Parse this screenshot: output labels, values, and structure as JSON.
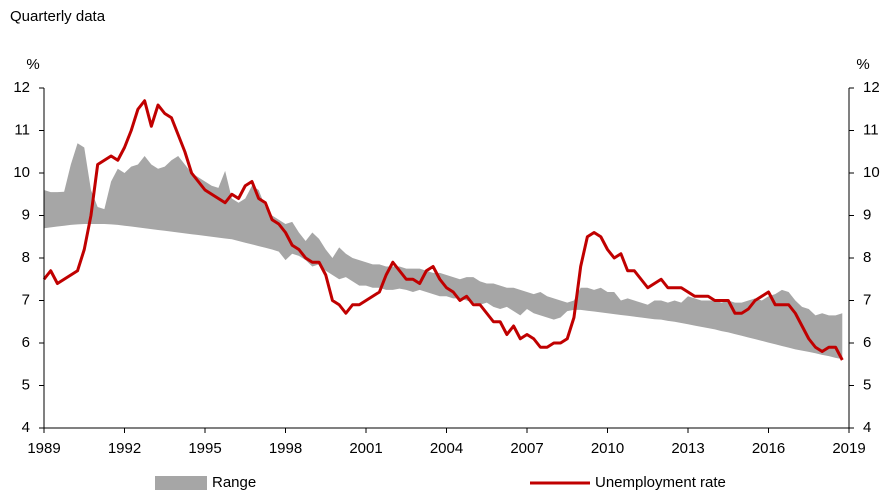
{
  "chart_data": {
    "type": "line",
    "subtitle": "Quarterly data",
    "y_label": "%",
    "y2_label": "%",
    "x": [
      1989,
      1989.25,
      1989.5,
      1989.75,
      1990,
      1990.25,
      1990.5,
      1990.75,
      1991,
      1991.25,
      1991.5,
      1991.75,
      1992,
      1992.25,
      1992.5,
      1992.75,
      1993,
      1993.25,
      1993.5,
      1993.75,
      1994,
      1994.25,
      1994.5,
      1994.75,
      1995,
      1995.25,
      1995.5,
      1995.75,
      1996,
      1996.25,
      1996.5,
      1996.75,
      1997,
      1997.25,
      1997.5,
      1997.75,
      1998,
      1998.25,
      1998.5,
      1998.75,
      1999,
      1999.25,
      1999.5,
      1999.75,
      2000,
      2000.25,
      2000.5,
      2000.75,
      2001,
      2001.25,
      2001.5,
      2001.75,
      2002,
      2002.25,
      2002.5,
      2002.75,
      2003,
      2003.25,
      2003.5,
      2003.75,
      2004,
      2004.25,
      2004.5,
      2004.75,
      2005,
      2005.25,
      2005.5,
      2005.75,
      2006,
      2006.25,
      2006.5,
      2006.75,
      2007,
      2007.25,
      2007.5,
      2007.75,
      2008,
      2008.25,
      2008.5,
      2008.75,
      2009,
      2009.25,
      2009.5,
      2009.75,
      2010,
      2010.25,
      2010.5,
      2010.75,
      2011,
      2011.25,
      2011.5,
      2011.75,
      2012,
      2012.25,
      2012.5,
      2012.75,
      2013,
      2013.25,
      2013.5,
      2013.75,
      2014,
      2014.25,
      2014.5,
      2014.75,
      2015,
      2015.25,
      2015.5,
      2015.75,
      2016,
      2016.25,
      2016.5,
      2016.75,
      2017,
      2017.25,
      2017.5,
      2017.75,
      2018,
      2018.25,
      2018.5,
      2018.75
    ],
    "series": [
      {
        "name": "Range",
        "type": "range",
        "color": "#a6a6a6",
        "lower": [
          8.7,
          8.72,
          8.74,
          8.76,
          8.78,
          8.79,
          8.8,
          8.8,
          8.8,
          8.8,
          8.79,
          8.78,
          8.76,
          8.74,
          8.72,
          8.7,
          8.68,
          8.66,
          8.64,
          8.62,
          8.6,
          8.58,
          8.56,
          8.54,
          8.52,
          8.5,
          8.48,
          8.46,
          8.44,
          8.4,
          8.36,
          8.32,
          8.28,
          8.24,
          8.2,
          8.15,
          7.95,
          8.1,
          8.05,
          7.95,
          7.8,
          7.85,
          7.7,
          7.6,
          7.5,
          7.55,
          7.45,
          7.35,
          7.35,
          7.3,
          7.3,
          7.25,
          7.25,
          7.28,
          7.25,
          7.2,
          7.25,
          7.2,
          7.15,
          7.1,
          7.1,
          7.05,
          7.05,
          7.0,
          6.95,
          6.9,
          6.95,
          6.85,
          6.8,
          6.85,
          6.75,
          6.65,
          6.8,
          6.7,
          6.65,
          6.6,
          6.55,
          6.6,
          6.75,
          6.78,
          6.78,
          6.76,
          6.74,
          6.72,
          6.7,
          6.68,
          6.66,
          6.64,
          6.62,
          6.6,
          6.58,
          6.56,
          6.55,
          6.52,
          6.5,
          6.47,
          6.44,
          6.41,
          6.38,
          6.35,
          6.32,
          6.28,
          6.25,
          6.21,
          6.17,
          6.13,
          6.09,
          6.05,
          6.01,
          5.97,
          5.93,
          5.89,
          5.85,
          5.82,
          5.79,
          5.76,
          5.72,
          5.69,
          5.65,
          5.62
        ],
        "values": [
          9.6,
          9.55,
          9.55,
          9.56,
          10.2,
          10.7,
          10.6,
          9.6,
          9.2,
          9.15,
          9.8,
          10.1,
          10.0,
          10.15,
          10.2,
          10.4,
          10.2,
          10.1,
          10.15,
          10.3,
          10.4,
          10.2,
          10.0,
          9.9,
          9.8,
          9.7,
          9.65,
          10.05,
          9.4,
          9.3,
          9.4,
          9.7,
          9.6,
          9.2,
          9.0,
          8.9,
          8.8,
          8.85,
          8.6,
          8.4,
          8.6,
          8.45,
          8.2,
          8.0,
          8.25,
          8.1,
          8.0,
          7.95,
          7.9,
          7.85,
          7.85,
          7.8,
          7.8,
          7.8,
          7.75,
          7.75,
          7.75,
          7.7,
          7.65,
          7.65,
          7.6,
          7.55,
          7.5,
          7.55,
          7.55,
          7.45,
          7.4,
          7.4,
          7.35,
          7.3,
          7.3,
          7.25,
          7.2,
          7.15,
          7.2,
          7.1,
          7.05,
          7.0,
          6.95,
          7.0,
          7.3,
          7.3,
          7.25,
          7.3,
          7.2,
          7.2,
          7.0,
          7.05,
          7.0,
          6.95,
          6.9,
          7.0,
          7.0,
          6.95,
          7.0,
          6.95,
          7.1,
          7.05,
          7.0,
          7.0,
          7.0,
          6.95,
          7.0,
          6.95,
          6.95,
          7.0,
          7.05,
          7.0,
          7.1,
          7.15,
          7.25,
          7.2,
          7.0,
          6.85,
          6.8,
          6.65,
          6.7,
          6.65,
          6.65,
          6.7
        ]
      },
      {
        "name": "Unemployment rate",
        "type": "line",
        "color": "#c00000",
        "values": [
          7.5,
          7.7,
          7.4,
          7.5,
          7.6,
          7.7,
          8.2,
          9.0,
          10.2,
          10.3,
          10.4,
          10.3,
          10.6,
          11.0,
          11.5,
          11.7,
          11.1,
          11.6,
          11.4,
          11.3,
          10.9,
          10.5,
          10.0,
          9.8,
          9.6,
          9.5,
          9.4,
          9.3,
          9.5,
          9.4,
          9.7,
          9.8,
          9.4,
          9.3,
          8.9,
          8.8,
          8.6,
          8.3,
          8.2,
          8.0,
          7.9,
          7.9,
          7.6,
          7.0,
          6.9,
          6.7,
          6.9,
          6.9,
          7.0,
          7.1,
          7.2,
          7.6,
          7.9,
          7.7,
          7.5,
          7.5,
          7.4,
          7.7,
          7.8,
          7.5,
          7.3,
          7.2,
          7.0,
          7.1,
          6.9,
          6.9,
          6.7,
          6.5,
          6.5,
          6.2,
          6.4,
          6.1,
          6.2,
          6.1,
          5.9,
          5.9,
          6.0,
          6.0,
          6.1,
          6.6,
          7.8,
          8.5,
          8.6,
          8.5,
          8.2,
          8.0,
          8.1,
          7.7,
          7.7,
          7.5,
          7.3,
          7.4,
          7.5,
          7.3,
          7.3,
          7.3,
          7.2,
          7.1,
          7.1,
          7.1,
          7.0,
          7.0,
          7.0,
          6.7,
          6.7,
          6.8,
          7.0,
          7.1,
          7.2,
          6.9,
          6.9,
          6.9,
          6.7,
          6.4,
          6.1,
          5.9,
          5.8,
          5.9,
          5.9,
          5.6
        ]
      }
    ],
    "xlim": [
      1989,
      2019
    ],
    "xticks": [
      1989,
      1992,
      1995,
      1998,
      2001,
      2004,
      2007,
      2010,
      2013,
      2016,
      2019
    ],
    "ylim": [
      4,
      12
    ],
    "yticks": [
      4,
      5,
      6,
      7,
      8,
      9,
      10,
      11,
      12
    ],
    "y2lim": [
      4,
      12
    ],
    "y2ticks": [
      4,
      5,
      6,
      7,
      8,
      9,
      10,
      11,
      12
    ],
    "legend": "bottom"
  }
}
